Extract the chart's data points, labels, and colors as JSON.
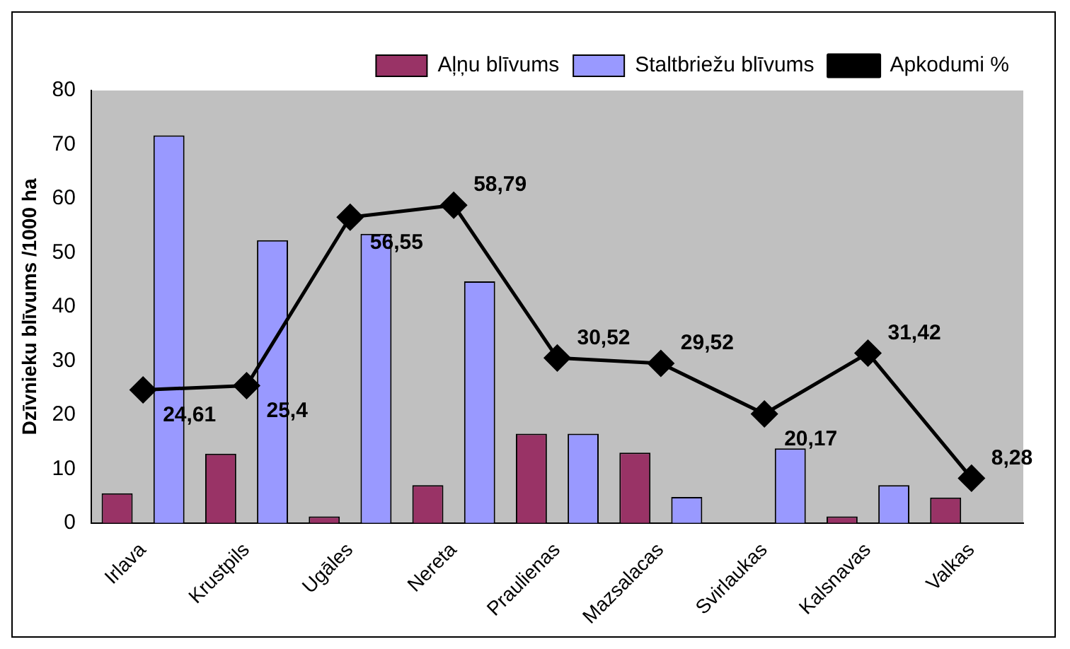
{
  "chart_data": {
    "type": "bar",
    "ylabel": "Dzīvnieku blīvums /1000 ha",
    "categories": [
      "Irlava",
      "Krustpils",
      "Ugāles",
      "Nereta",
      "Praulienas",
      "Mazsalacas",
      "Svirlaukas",
      "Kalsnavas",
      "Valkas"
    ],
    "series": [
      {
        "name": "Aļņu blīvums",
        "color": "#993366",
        "values": [
          5.5,
          12.8,
          1.2,
          7,
          16.5,
          13,
          null,
          1.2,
          4.7
        ]
      },
      {
        "name": "Staltbriežu blīvums",
        "color": "#9999ff",
        "values": [
          71.7,
          52.3,
          53.5,
          44.7,
          16.5,
          4.8,
          13.8,
          7,
          null
        ]
      },
      {
        "name": "Apkodumi %",
        "type": "line",
        "color": "#000000",
        "values": [
          24.61,
          25.4,
          56.55,
          58.79,
          30.52,
          29.52,
          20.17,
          31.42,
          8.28
        ],
        "value_labels": [
          "24,61",
          "25,4",
          "56,55",
          "58,79",
          "30,52",
          "29,52",
          "20,17",
          "31,42",
          "8,28"
        ]
      }
    ],
    "ylim": [
      0,
      80
    ],
    "yticks": [
      0,
      10,
      20,
      30,
      40,
      50,
      60,
      70,
      80
    ],
    "grid": false,
    "legend": "top right",
    "marker": "diamond",
    "line_style": "solid"
  }
}
